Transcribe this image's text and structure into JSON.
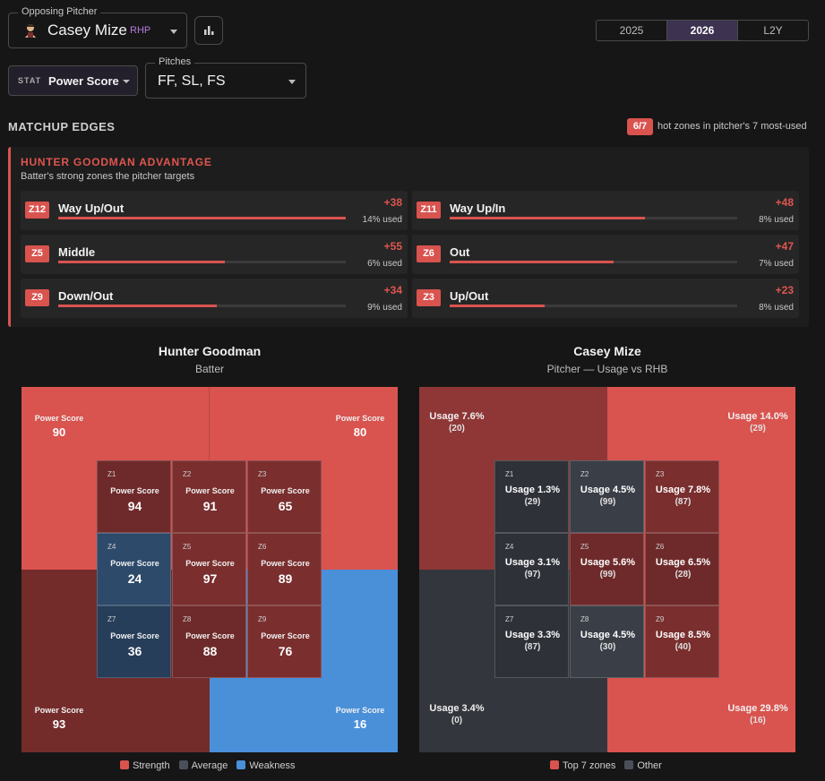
{
  "pitcher_selector": {
    "label": "Opposing Pitcher",
    "name": "Casey Mize",
    "hand": "RHP"
  },
  "years": [
    {
      "label": "2025",
      "active": false
    },
    {
      "label": "2026",
      "active": true
    },
    {
      "label": "L2Y",
      "active": false
    }
  ],
  "stat_selector": {
    "tag": "STAT",
    "value": "Power Score"
  },
  "pitches_selector": {
    "label": "Pitches",
    "value": "FF, SL, FS"
  },
  "matchup": {
    "title": "MATCHUP EDGES",
    "hot_badge": "6/7",
    "hot_text": "hot zones in pitcher's 7 most-used"
  },
  "advantage": {
    "title": "HUNTER GOODMAN ADVANTAGE",
    "subtitle": "Batter's strong zones the pitcher targets",
    "edges": [
      {
        "zone": "Z12",
        "name": "Way Up/Out",
        "value": "+38",
        "usage": "14% used",
        "bar_pct": 100
      },
      {
        "zone": "Z11",
        "name": "Way Up/In",
        "value": "+48",
        "usage": "8% used",
        "bar_pct": 68
      },
      {
        "zone": "Z5",
        "name": "Middle",
        "value": "+55",
        "usage": "6% used",
        "bar_pct": 58
      },
      {
        "zone": "Z6",
        "name": "Out",
        "value": "+47",
        "usage": "7% used",
        "bar_pct": 57
      },
      {
        "zone": "Z9",
        "name": "Down/Out",
        "value": "+34",
        "usage": "9% used",
        "bar_pct": 55
      },
      {
        "zone": "Z3",
        "name": "Up/Out",
        "value": "+23",
        "usage": "8% used",
        "bar_pct": 33
      }
    ]
  },
  "batter_panel": {
    "title": "Hunter Goodman",
    "subtitle": "Batter",
    "metric_label": "Power Score",
    "outer": {
      "top_left": "90",
      "top_right": "80",
      "bottom_left": "93",
      "bottom_right": "16"
    },
    "zones": [
      {
        "id": "Z1",
        "value": "94",
        "kind": "strong"
      },
      {
        "id": "Z2",
        "value": "91",
        "kind": "strong2"
      },
      {
        "id": "Z3",
        "value": "65",
        "kind": "strong2"
      },
      {
        "id": "Z4",
        "value": "24",
        "kind": "weak"
      },
      {
        "id": "Z5",
        "value": "97",
        "kind": "strong2"
      },
      {
        "id": "Z6",
        "value": "89",
        "kind": "strong2"
      },
      {
        "id": "Z7",
        "value": "36",
        "kind": "weak"
      },
      {
        "id": "Z8",
        "value": "88",
        "kind": "strong"
      },
      {
        "id": "Z9",
        "value": "76",
        "kind": "strong2"
      }
    ],
    "legend": [
      {
        "label": "Strength",
        "color": "#d9534f"
      },
      {
        "label": "Average",
        "color": "#4a4f5a"
      },
      {
        "label": "Weakness",
        "color": "#4a90d9"
      }
    ]
  },
  "pitcher_panel": {
    "title": "Casey Mize",
    "subtitle": "Pitcher — Usage vs RHB",
    "outer": {
      "top_left": {
        "usage": "Usage 7.6%",
        "count": "(20)"
      },
      "top_right": {
        "usage": "Usage 14.0%",
        "count": "(29)"
      },
      "bottom_left": {
        "usage": "Usage 3.4%",
        "count": "(0)"
      },
      "bottom_right": {
        "usage": "Usage 29.8%",
        "count": "(16)"
      }
    },
    "zones": [
      {
        "id": "Z1",
        "usage": "Usage 1.3%",
        "count": "(29)",
        "top": false
      },
      {
        "id": "Z2",
        "usage": "Usage 4.5%",
        "count": "(99)",
        "top": false
      },
      {
        "id": "Z3",
        "usage": "Usage 7.8%",
        "count": "(87)",
        "top": true
      },
      {
        "id": "Z4",
        "usage": "Usage 3.1%",
        "count": "(97)",
        "top": false
      },
      {
        "id": "Z5",
        "usage": "Usage 5.6%",
        "count": "(99)",
        "top": true
      },
      {
        "id": "Z6",
        "usage": "Usage 6.5%",
        "count": "(28)",
        "top": true
      },
      {
        "id": "Z7",
        "usage": "Usage 3.3%",
        "count": "(87)",
        "top": false
      },
      {
        "id": "Z8",
        "usage": "Usage 4.5%",
        "count": "(30)",
        "top": false
      },
      {
        "id": "Z9",
        "usage": "Usage 8.5%",
        "count": "(40)",
        "top": true
      }
    ],
    "legend": [
      {
        "label": "Top 7 zones",
        "color": "#d9534f"
      },
      {
        "label": "Other",
        "color": "#4a4f5a"
      }
    ]
  }
}
